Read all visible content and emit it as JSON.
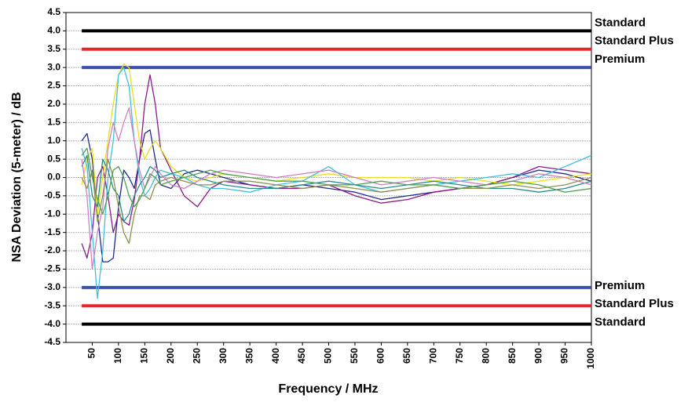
{
  "chart_data": {
    "type": "line",
    "y_label": "NSA Deviation (5-meter) / dB",
    "x_label": "Frequency / MHz",
    "xlim": [
      0,
      1000
    ],
    "xticks": [
      50,
      100,
      150,
      200,
      250,
      300,
      350,
      400,
      450,
      500,
      550,
      600,
      650,
      700,
      750,
      800,
      850,
      900,
      950,
      1000
    ],
    "ylim": [
      -4.5,
      4.5
    ],
    "yticks": [
      4.5,
      {
        "value": 4,
        "label": "4.0"
      },
      3.5,
      {
        "value": 3,
        "label": "3.0"
      },
      2.5,
      {
        "value": 2,
        "label": "2.0"
      },
      1.5,
      {
        "value": 1,
        "label": "1.0"
      },
      0.5,
      {
        "value": 0,
        "label": "0.0"
      },
      -0.5,
      {
        "value": -1,
        "label": "-1.0"
      },
      -1.5,
      {
        "value": -2,
        "label": "-2.0"
      },
      -2.5,
      {
        "value": -3,
        "label": "-3.0"
      },
      -3.5,
      {
        "value": -4,
        "label": "-4.0"
      },
      -4.5
    ],
    "grid": true,
    "reference_lines": [
      {
        "label": "Standard",
        "value": 4,
        "color": "#000000"
      },
      {
        "label": "Standard Plus",
        "value": 3.5,
        "color": "#e8262a"
      },
      {
        "label": "Premium",
        "value": 3,
        "color": "#3a4fb0"
      },
      {
        "label": "Premium",
        "value": -3,
        "color": "#3a4fb0"
      },
      {
        "label": "Standard Plus",
        "value": -3.5,
        "color": "#e8262a"
      },
      {
        "label": "Standard",
        "value": -4,
        "color": "#000000"
      }
    ],
    "x": [
      30,
      40,
      50,
      60,
      70,
      80,
      90,
      100,
      110,
      120,
      130,
      140,
      150,
      160,
      170,
      180,
      200,
      225,
      250,
      275,
      300,
      350,
      400,
      450,
      500,
      550,
      600,
      650,
      700,
      750,
      800,
      850,
      900,
      950,
      1000
    ],
    "series": [
      {
        "color": "#1f2a8a",
        "values": [
          1.0,
          1.2,
          0.5,
          -1.0,
          -2.3,
          -2.3,
          -2.2,
          -0.8,
          0.2,
          0.0,
          -0.3,
          0.5,
          1.2,
          1.3,
          0.5,
          -0.2,
          -0.3,
          0.1,
          0.2,
          0.1,
          0.0,
          -0.2,
          -0.3,
          -0.2,
          -0.3,
          -0.4,
          -0.6,
          -0.5,
          -0.4,
          -0.3,
          -0.2,
          0.0,
          0.2,
          0.1,
          -0.1
        ]
      },
      {
        "color": "#8b1a8b",
        "values": [
          -1.8,
          -2.2,
          -1.5,
          0.0,
          0.3,
          -0.5,
          -1.5,
          -1.0,
          -1.2,
          -1.3,
          -0.6,
          0.5,
          2.0,
          2.8,
          2.0,
          0.8,
          0.2,
          -0.5,
          -0.8,
          -0.3,
          -0.1,
          -0.2,
          -0.3,
          -0.3,
          -0.2,
          -0.5,
          -0.7,
          -0.6,
          -0.4,
          -0.3,
          -0.2,
          0.0,
          0.3,
          0.2,
          0.1
        ]
      },
      {
        "color": "#e8e020",
        "values": [
          -0.2,
          0.5,
          0.8,
          -1.0,
          0.0,
          1.0,
          2.0,
          2.8,
          3.1,
          3.0,
          2.0,
          1.0,
          0.5,
          0.8,
          1.0,
          0.8,
          0.3,
          0.0,
          -0.1,
          0.0,
          0.1,
          0.0,
          -0.1,
          0.0,
          0.1,
          0.0,
          0.0,
          0.0,
          -0.1,
          0.0,
          -0.1,
          -0.2,
          -0.1,
          0.0,
          0.1
        ]
      },
      {
        "color": "#40c0e0",
        "values": [
          0.8,
          0.3,
          -1.5,
          -3.3,
          -2.0,
          0.0,
          1.0,
          2.8,
          3.0,
          2.5,
          1.0,
          0.0,
          -0.5,
          -0.3,
          0.0,
          0.2,
          0.1,
          0.0,
          -0.2,
          -0.3,
          -0.3,
          -0.4,
          -0.2,
          -0.1,
          0.3,
          -0.2,
          -0.4,
          -0.3,
          -0.2,
          -0.1,
          0.0,
          0.1,
          0.0,
          0.3,
          0.6
        ]
      },
      {
        "color": "#2a8a8a",
        "values": [
          0.3,
          0.6,
          -0.5,
          -0.8,
          0.5,
          0.2,
          -0.3,
          -0.5,
          -1.2,
          -1.0,
          -0.5,
          -0.2,
          0.0,
          0.3,
          0.2,
          0.0,
          0.1,
          0.2,
          0.0,
          -0.1,
          -0.2,
          -0.3,
          -0.3,
          -0.2,
          -0.1,
          -0.2,
          -0.3,
          -0.2,
          -0.1,
          -0.2,
          -0.3,
          -0.3,
          -0.4,
          -0.3,
          -0.1
        ]
      },
      {
        "color": "#d080c0",
        "values": [
          0.5,
          -0.5,
          -2.5,
          -1.5,
          -0.8,
          0.8,
          1.5,
          1.0,
          1.5,
          1.9,
          1.0,
          0.2,
          -0.3,
          0.0,
          0.3,
          0.1,
          -0.2,
          -0.3,
          -0.1,
          0.1,
          0.2,
          0.1,
          0.0,
          0.1,
          0.2,
          0.0,
          -0.2,
          -0.1,
          0.0,
          -0.1,
          -0.2,
          -0.1,
          0.1,
          0.0,
          -0.2
        ]
      },
      {
        "color": "#909050",
        "values": [
          0.0,
          -0.3,
          0.2,
          -1.2,
          -0.5,
          0.5,
          0.0,
          -0.8,
          -1.5,
          -1.8,
          -1.0,
          -0.5,
          -0.5,
          -0.6,
          -0.2,
          -0.1,
          0.0,
          -0.1,
          -0.2,
          -0.2,
          -0.1,
          -0.1,
          -0.2,
          -0.3,
          -0.2,
          -0.3,
          -0.4,
          -0.3,
          -0.2,
          -0.3,
          -0.3,
          -0.2,
          -0.3,
          -0.2,
          0.0
        ]
      },
      {
        "color": "#50a050",
        "values": [
          0.6,
          0.8,
          0.0,
          -0.6,
          -1.0,
          -0.5,
          0.2,
          0.3,
          0.0,
          -0.5,
          -0.8,
          -0.6,
          -0.3,
          0.1,
          0.0,
          -0.2,
          -0.1,
          0.0,
          0.1,
          0.2,
          0.1,
          0.0,
          -0.1,
          -0.1,
          -0.2,
          -0.2,
          -0.1,
          -0.2,
          -0.2,
          -0.3,
          -0.2,
          -0.1,
          -0.2,
          -0.4,
          -0.3
        ]
      }
    ]
  }
}
